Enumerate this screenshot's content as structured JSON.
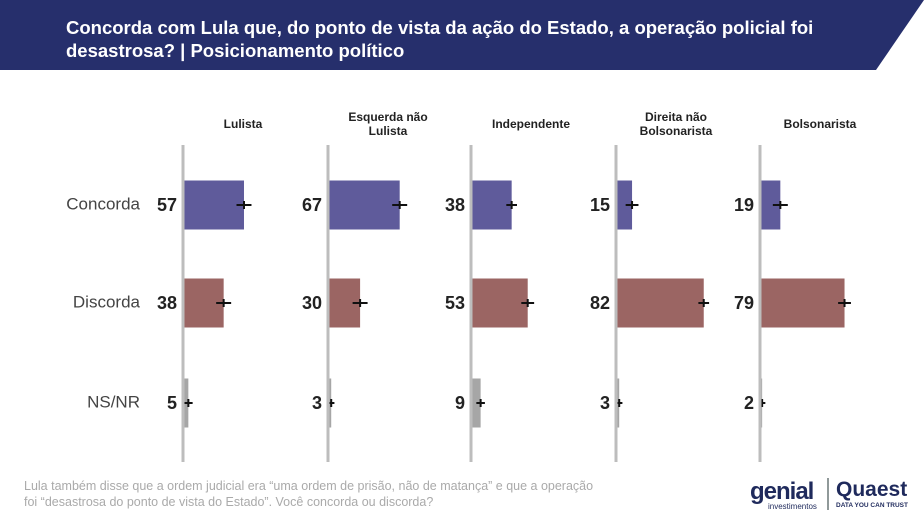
{
  "chart_data": {
    "type": "bar",
    "orientation": "horizontal",
    "title": "Concorda com Lula que, do ponto de vista da ação do Estado, a operação policial foi desastrosa? | Posicionamento político",
    "categories": [
      "Concorda",
      "Discorda",
      "NS/NR"
    ],
    "colors": [
      "#5f5b9b",
      "#9b6563",
      "#a6a6a6"
    ],
    "xlim": [
      0,
      100
    ],
    "panels": [
      {
        "name": "Lulista",
        "values": [
          57,
          38,
          5
        ],
        "errors": [
          7,
          7,
          4
        ]
      },
      {
        "name": "Esquerda não Lulista",
        "values": [
          67,
          30,
          3
        ],
        "errors": [
          7,
          7,
          3
        ]
      },
      {
        "name": "Independente",
        "values": [
          38,
          53,
          9
        ],
        "errors": [
          5,
          6,
          4
        ]
      },
      {
        "name": "Direita não Bolsonarista",
        "values": [
          15,
          82,
          3
        ],
        "errors": [
          6,
          5,
          3
        ]
      },
      {
        "name": "Bolsonarista",
        "values": [
          19,
          79,
          2
        ],
        "errors": [
          7,
          6,
          3
        ]
      }
    ],
    "note": "Lula também disse que a ordem judicial era “uma ordem de prisão, não de matança” e que a operação foi “desastrosa do ponto de vista do Estado”. Você concorda ou discorda?",
    "logos": {
      "genial": "genial",
      "genial_sub": "investimentos",
      "quaest": "Quaest",
      "quaest_sub": "DATA YOU CAN TRUST"
    }
  }
}
